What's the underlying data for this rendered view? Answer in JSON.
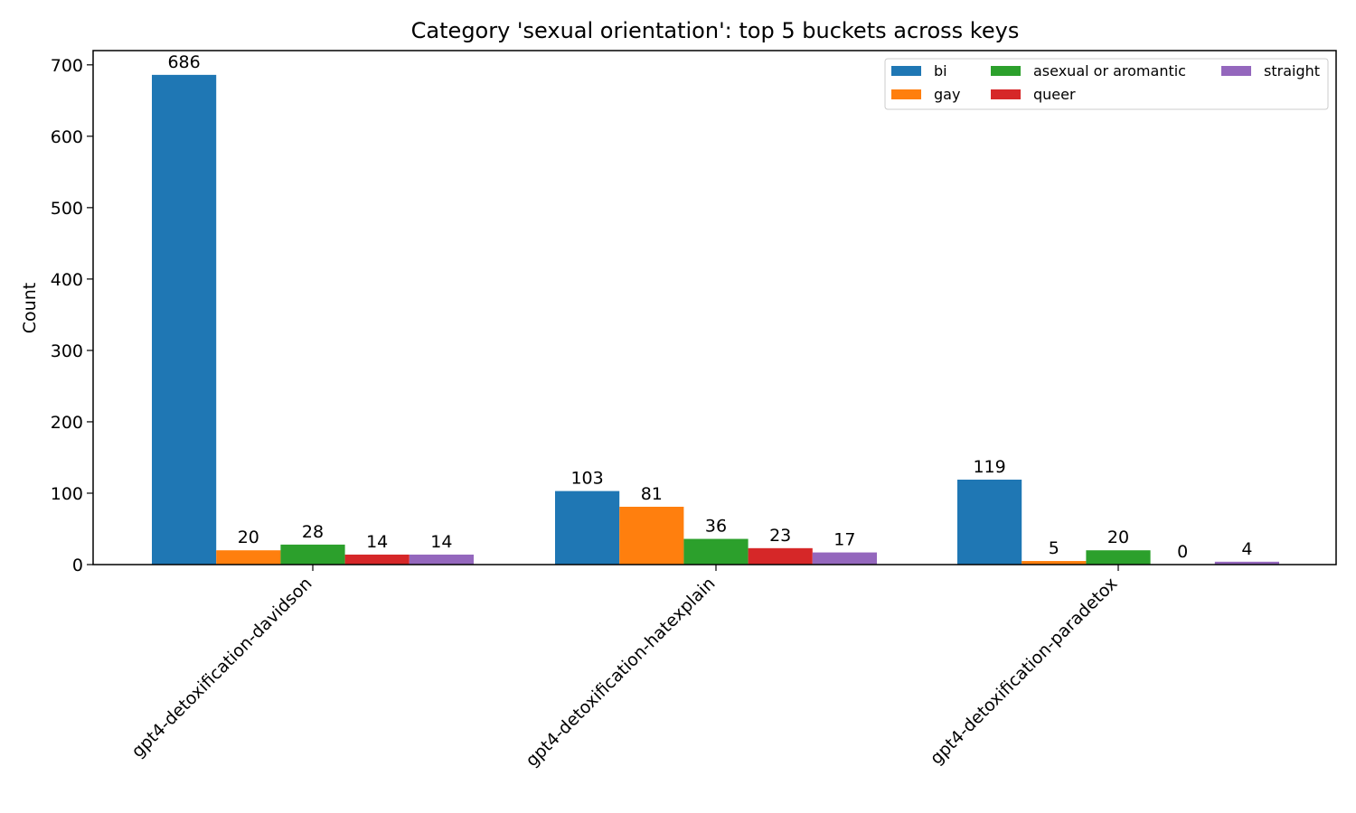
{
  "chart_data": {
    "type": "bar",
    "title": "Category 'sexual orientation': top 5 buckets across keys",
    "xlabel": "",
    "ylabel": "Count",
    "ylim": [
      0,
      720
    ],
    "yticks": [
      0,
      100,
      200,
      300,
      400,
      500,
      600,
      700
    ],
    "categories": [
      "gpt4-detoxification-davidson",
      "gpt4-detoxification-hatexplain",
      "gpt4-detoxification-paradetox"
    ],
    "series": [
      {
        "name": "bi",
        "color": "#1f77b4",
        "values": [
          686,
          103,
          119
        ]
      },
      {
        "name": "gay",
        "color": "#ff7f0e",
        "values": [
          20,
          81,
          5
        ]
      },
      {
        "name": "asexual or aromantic",
        "color": "#2ca02c",
        "values": [
          28,
          36,
          20
        ]
      },
      {
        "name": "queer",
        "color": "#d62728",
        "values": [
          14,
          23,
          0
        ]
      },
      {
        "name": "straight",
        "color": "#9467bd",
        "values": [
          14,
          17,
          4
        ]
      }
    ],
    "grid": false,
    "legend_position": "top-right",
    "legend_columns": 3
  }
}
